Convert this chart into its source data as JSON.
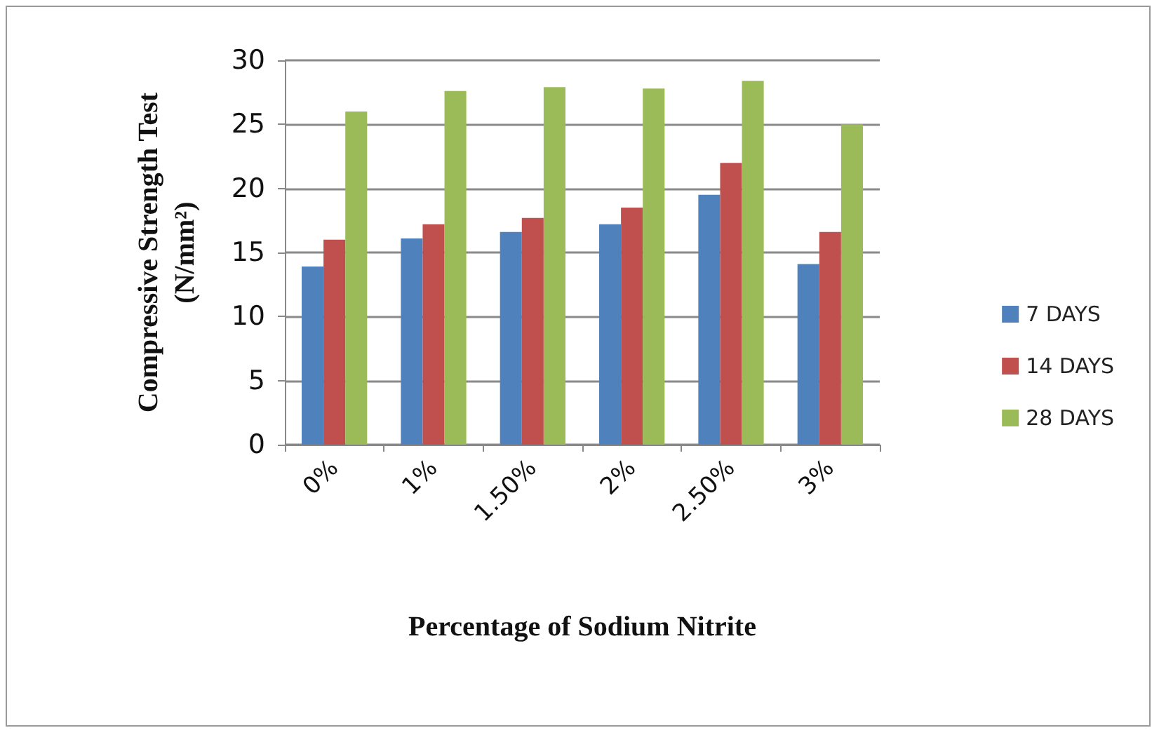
{
  "chart_data": {
    "type": "bar",
    "ylabel": "Compressive Strength Test\n(N/mm²)",
    "xlabel": "Percentage of Sodium Nitrite",
    "categories": [
      "0%",
      "1%",
      "1.50%",
      "2%",
      "2.50%",
      "3%"
    ],
    "series": [
      {
        "name": "7 DAYS",
        "color": "#4f81bd",
        "values": [
          13.9,
          16.1,
          16.6,
          17.2,
          19.5,
          14.1
        ]
      },
      {
        "name": "14 DAYS",
        "color": "#c0504d",
        "values": [
          16,
          17.2,
          17.7,
          18.5,
          22,
          16.6
        ]
      },
      {
        "name": "28 DAYS",
        "color": "#9bbb59",
        "values": [
          26,
          27.6,
          27.9,
          27.8,
          28.4,
          25
        ]
      }
    ],
    "ylim": [
      0,
      30
    ],
    "yticks": [
      0,
      5,
      10,
      15,
      20,
      25,
      30
    ],
    "grid": "y",
    "legend": "right"
  }
}
